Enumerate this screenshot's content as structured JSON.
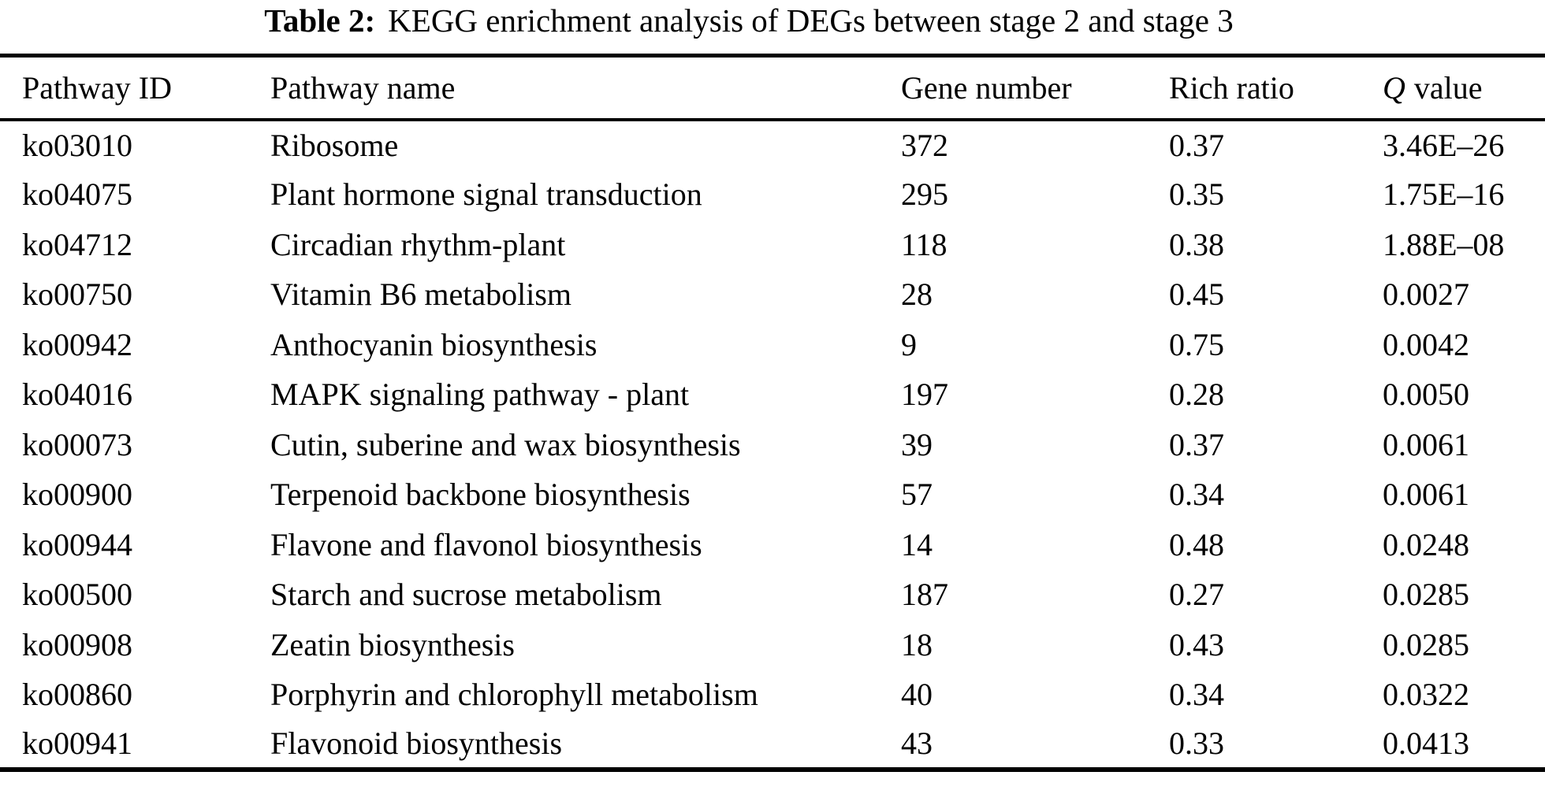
{
  "page": {
    "background": "#ffffff",
    "text_color": "#000000",
    "rule_color": "#000000"
  },
  "title": {
    "label": "Table 2:",
    "text": "KEGG enrichment analysis of DEGs between stage 2 and stage 3"
  },
  "table": {
    "columns": [
      {
        "key": "id",
        "label": "Pathway ID"
      },
      {
        "key": "name",
        "label": "Pathway name"
      },
      {
        "key": "genes",
        "label": "Gene number"
      },
      {
        "key": "ratio",
        "label": "Rich ratio"
      },
      {
        "key": "q",
        "label_symbol": "Q",
        "label_rest": "value"
      }
    ],
    "rows": [
      {
        "id": "ko03010",
        "name": "Ribosome",
        "genes": "372",
        "ratio": "0.37",
        "q": "3.46E–26"
      },
      {
        "id": "ko04075",
        "name": "Plant hormone signal transduction",
        "genes": "295",
        "ratio": "0.35",
        "q": "1.75E–16"
      },
      {
        "id": "ko04712",
        "name": "Circadian rhythm-plant",
        "genes": "118",
        "ratio": "0.38",
        "q": "1.88E–08"
      },
      {
        "id": "ko00750",
        "name": "Vitamin B6 metabolism",
        "genes": "28",
        "ratio": "0.45",
        "q": "0.0027"
      },
      {
        "id": "ko00942",
        "name": "Anthocyanin biosynthesis",
        "genes": "9",
        "ratio": "0.75",
        "q": "0.0042"
      },
      {
        "id": "ko04016",
        "name": "MAPK signaling pathway - plant",
        "genes": "197",
        "ratio": "0.28",
        "q": "0.0050"
      },
      {
        "id": "ko00073",
        "name": "Cutin, suberine and wax biosynthesis",
        "genes": "39",
        "ratio": "0.37",
        "q": "0.0061"
      },
      {
        "id": "ko00900",
        "name": "Terpenoid backbone biosynthesis",
        "genes": "57",
        "ratio": "0.34",
        "q": "0.0061"
      },
      {
        "id": "ko00944",
        "name": "Flavone and flavonol biosynthesis",
        "genes": "14",
        "ratio": "0.48",
        "q": "0.0248"
      },
      {
        "id": "ko00500",
        "name": "Starch and sucrose metabolism",
        "genes": "187",
        "ratio": "0.27",
        "q": "0.0285"
      },
      {
        "id": "ko00908",
        "name": "Zeatin biosynthesis",
        "genes": "18",
        "ratio": "0.43",
        "q": "0.0285"
      },
      {
        "id": "ko00860",
        "name": "Porphyrin and chlorophyll metabolism",
        "genes": "40",
        "ratio": "0.34",
        "q": "0.0322"
      },
      {
        "id": "ko00941",
        "name": "Flavonoid biosynthesis",
        "genes": "43",
        "ratio": "0.33",
        "q": "0.0413"
      }
    ]
  }
}
